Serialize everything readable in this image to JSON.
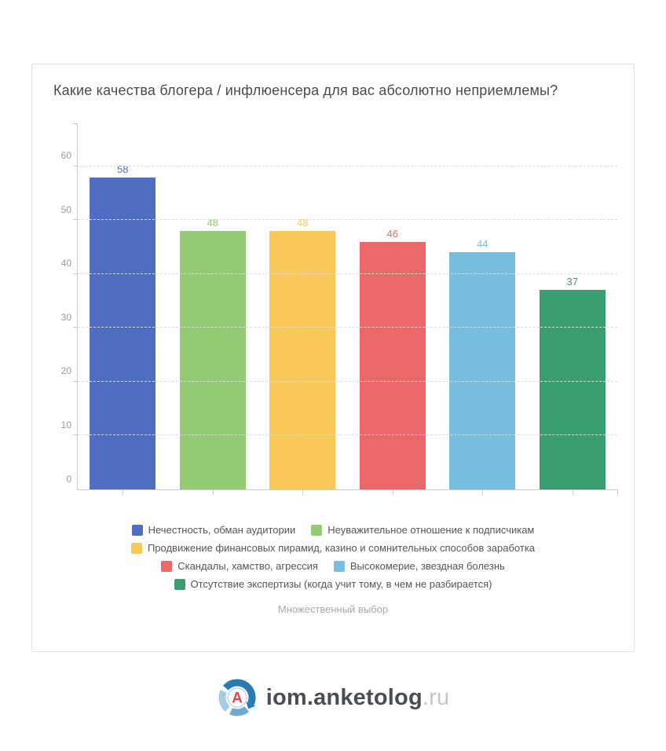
{
  "card": {
    "title": "Какие качества блогера / инфлюенсера для вас абсолютно неприемлемы?",
    "footnote": "Множественный выбор"
  },
  "chart_data": {
    "type": "bar",
    "title": "Какие качества блогера / инфлюенсера для вас абсолютно неприемлемы?",
    "categories": [
      "Нечестность, обман аудитории",
      "Неуважительное отношение к подписчикам",
      "Продвижение финансовых пирамид, казино и сомнительных способов заработка",
      "Скандалы, хамство, агрессия",
      "Высокомерие, звездная болезнь",
      "Отсутствие экспертизы (когда учит тому, в чем не разбирается)"
    ],
    "values": [
      58,
      48,
      48,
      46,
      44,
      37
    ],
    "colors": [
      "#4f6dc1",
      "#92cb74",
      "#f8c858",
      "#ec6767",
      "#75bede",
      "#3a9e70"
    ],
    "xlabel": "",
    "ylabel": "",
    "ylim": [
      0,
      68
    ],
    "y_ticks": [
      0,
      10,
      20,
      30,
      40,
      50,
      60
    ],
    "grid": "horizontal-dashed",
    "legend_position": "bottom",
    "value_labels": "above bars, colored as bars",
    "note": "Множественный выбор"
  },
  "footer": {
    "brand": "iom.anketolog",
    "tld": ".ru",
    "logo_icon": "anketolog-circle-arrows-logo",
    "logo_letter": "A",
    "logo_colors": {
      "dark_blue": "#2b7ab2",
      "mid_blue": "#6ea9ce",
      "light_blue": "#a5cbe1",
      "ring": "#bcd8e8",
      "letter_red": "#e14949"
    }
  }
}
